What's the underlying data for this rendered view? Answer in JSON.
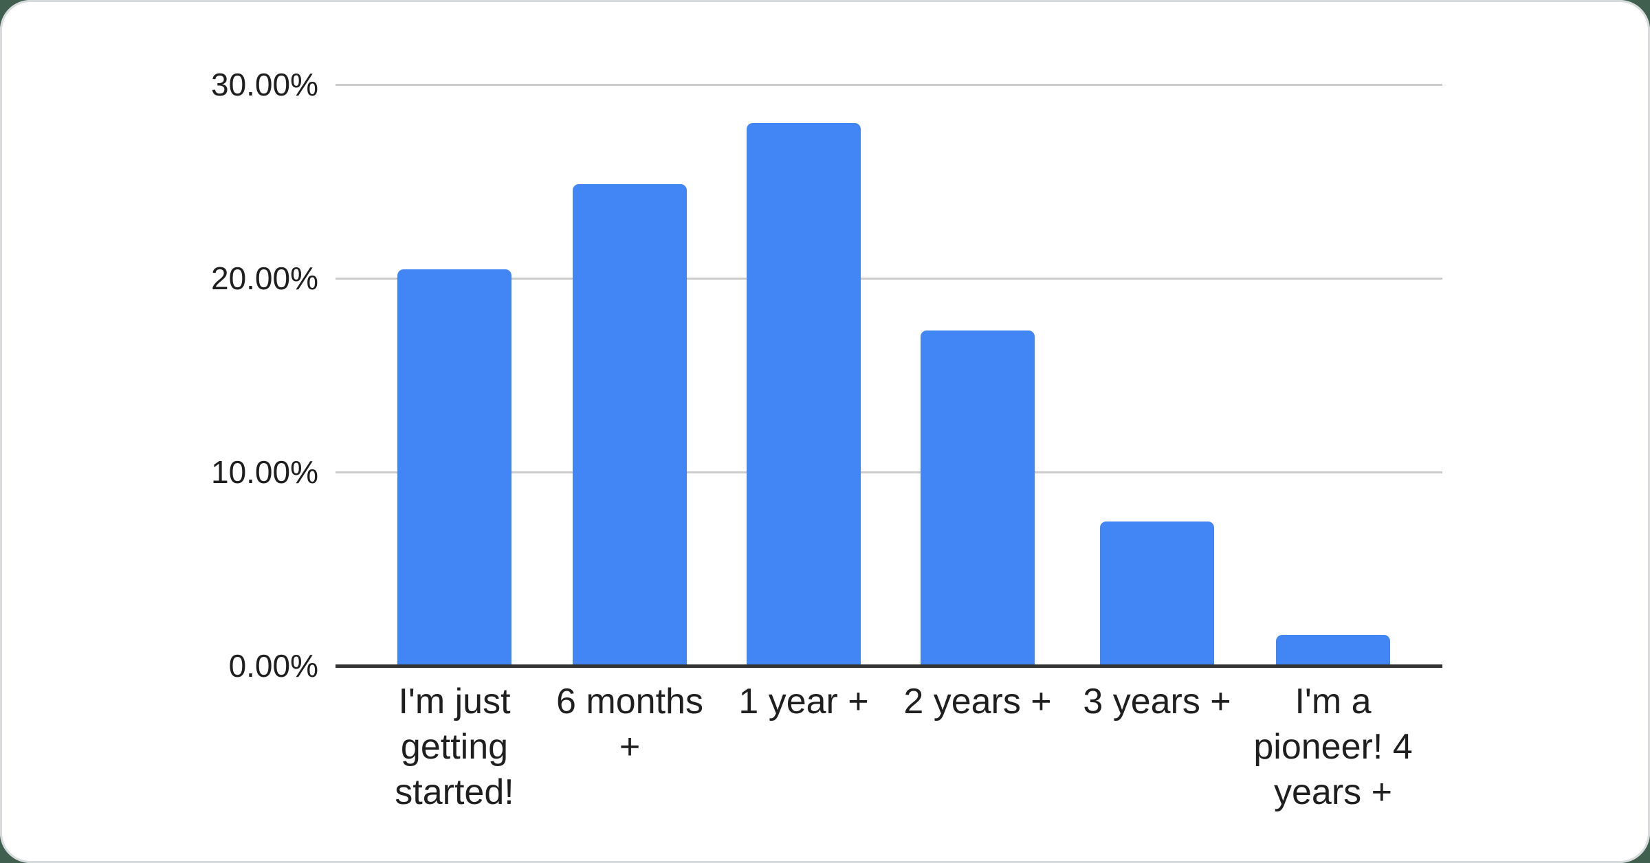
{
  "page": {
    "background_color": "#415f4e",
    "card_color": "#ffffff",
    "card_border_color": "#d8dbde"
  },
  "chart_data": {
    "type": "bar",
    "title": "",
    "xlabel": "",
    "ylabel": "",
    "categories": [
      "I'm just getting started!",
      "6 months +",
      "1 year +",
      "2 years +",
      "3 years +",
      "I'm a pioneer! 4 years +"
    ],
    "values": [
      20.45,
      24.85,
      28.0,
      17.3,
      7.45,
      1.6
    ],
    "value_unit": "%",
    "ylim": [
      0,
      30
    ],
    "ytick_values": [
      0,
      10,
      20,
      30
    ],
    "ytick_labels": [
      "0.00%",
      "10.00%",
      "20.00%",
      "30.00%"
    ],
    "grid": true,
    "legend_position": "none",
    "bar_color": "#4285f4",
    "gridline_color": "#cccccc",
    "axis_line_color": "#333333",
    "label_color": "#1f1f1f"
  }
}
